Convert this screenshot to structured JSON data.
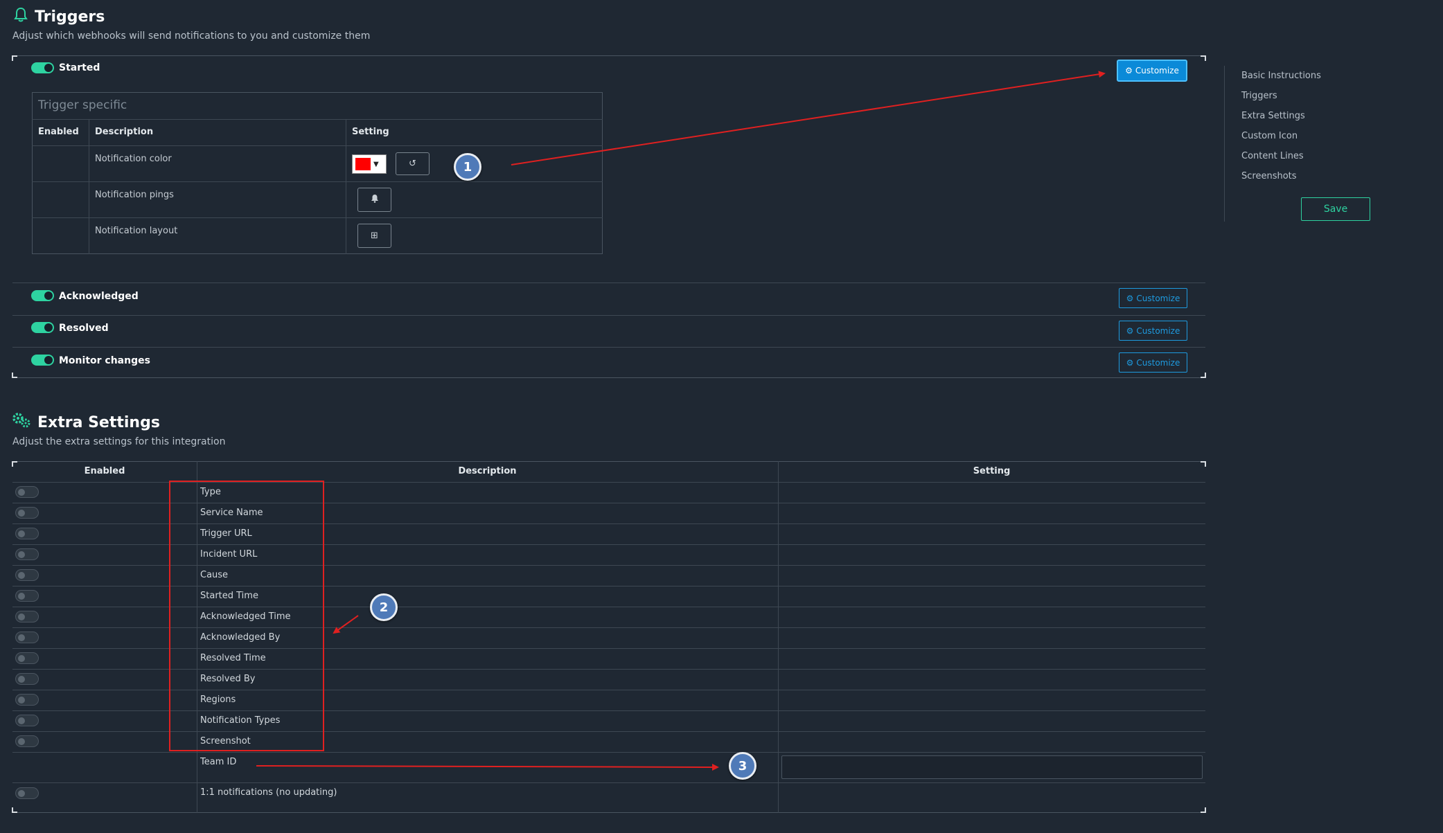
{
  "triggers": {
    "title": "Triggers",
    "subtitle": "Adjust which webhooks will send notifications to you and customize them",
    "items": [
      {
        "label": "Started",
        "enabled": true,
        "customize": "Customize"
      },
      {
        "label": "Acknowledged",
        "enabled": true,
        "customize": "Customize"
      },
      {
        "label": "Resolved",
        "enabled": true,
        "customize": "Customize"
      },
      {
        "label": "Monitor changes",
        "enabled": true,
        "customize": "Customize"
      }
    ],
    "specific": {
      "title": "Trigger specific",
      "headers": [
        "Enabled",
        "Description",
        "Setting"
      ],
      "rows": [
        {
          "description": "Notification color",
          "color": "#ff0000",
          "icon": "reset-icon"
        },
        {
          "description": "Notification pings",
          "icon": "bell-icon"
        },
        {
          "description": "Notification layout",
          "icon": "layout-icon"
        }
      ]
    }
  },
  "sidebar": {
    "items": [
      "Basic Instructions",
      "Triggers",
      "Extra Settings",
      "Custom Icon",
      "Content Lines",
      "Screenshots"
    ],
    "save_label": "Save"
  },
  "extra": {
    "title": "Extra Settings",
    "subtitle": "Adjust the extra settings for this integration",
    "headers": [
      "Enabled",
      "Description",
      "Setting"
    ],
    "rows": [
      "Type",
      "Service Name",
      "Trigger URL",
      "Incident URL",
      "Cause",
      "Started Time",
      "Acknowledged Time",
      "Acknowledged By",
      "Resolved Time",
      "Resolved By",
      "Regions",
      "Notification Types",
      "Screenshot"
    ],
    "team_id_label": "Team ID",
    "team_id_value": "",
    "one_to_one_label": "1:1 notifications (no updating)"
  },
  "annotations": [
    "1",
    "2",
    "3"
  ],
  "colors": {
    "accent": "#2ed3a1",
    "link": "#1e9be0",
    "arrow": "#e02020",
    "background": "#1f2833"
  }
}
